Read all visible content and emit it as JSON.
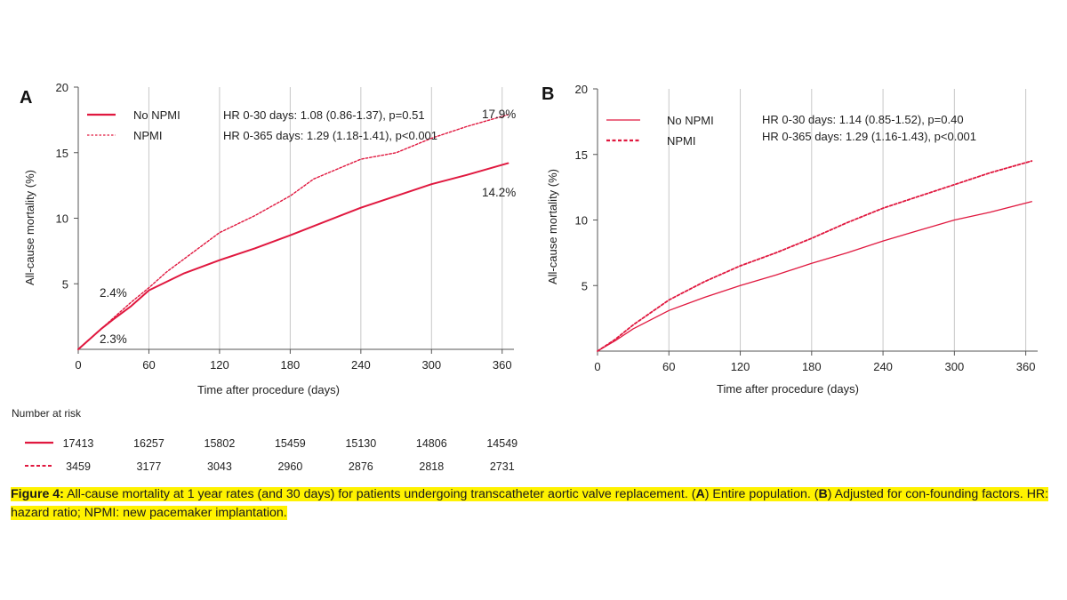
{
  "chart_data": [
    {
      "type": "line",
      "panel_label": "A",
      "xlabel": "Time after procedure (days)",
      "ylabel": "All-cause mortality (%)",
      "xlim": [
        0,
        370
      ],
      "ylim": [
        0,
        20
      ],
      "xticks": [
        0,
        60,
        120,
        180,
        240,
        300,
        360
      ],
      "yticks": [
        5,
        10,
        15,
        20
      ],
      "grid": "vertical",
      "legend_position": "top-left",
      "series": [
        {
          "name": "No NPMI",
          "style": "solid",
          "x": [
            0,
            10,
            20,
            30,
            45,
            60,
            90,
            120,
            150,
            180,
            200,
            240,
            270,
            300,
            330,
            365
          ],
          "values": [
            0,
            0.8,
            1.6,
            2.3,
            3.3,
            4.5,
            5.8,
            6.8,
            7.7,
            8.7,
            9.4,
            10.8,
            11.7,
            12.6,
            13.3,
            14.2
          ]
        },
        {
          "name": "NPMI",
          "style": "dashed",
          "x": [
            0,
            10,
            20,
            30,
            45,
            60,
            75,
            90,
            120,
            150,
            180,
            200,
            240,
            270,
            300,
            330,
            365
          ],
          "values": [
            0,
            0.8,
            1.6,
            2.4,
            3.6,
            4.7,
            5.9,
            6.9,
            8.9,
            10.2,
            11.7,
            13.0,
            14.5,
            15.0,
            16.1,
            17.0,
            17.9
          ]
        }
      ],
      "annotations": [
        {
          "text": "HR 0-30 days: 1.08 (0.86-1.37), p=0.51"
        },
        {
          "text": "HR 0-365 days: 1.29 (1.18-1.41), p<0.001"
        },
        {
          "text": "17.9%"
        },
        {
          "text": "14.2%"
        },
        {
          "text": "2.4%"
        },
        {
          "text": "2.3%"
        }
      ]
    },
    {
      "type": "line",
      "panel_label": "B",
      "xlabel": "Time after procedure (days)",
      "ylabel": "All-cause mortality (%)",
      "xlim": [
        0,
        370
      ],
      "ylim": [
        0,
        20
      ],
      "xticks": [
        0,
        60,
        120,
        180,
        240,
        300,
        360
      ],
      "yticks": [
        5,
        10,
        15,
        20
      ],
      "grid": "vertical",
      "legend_position": "top-left",
      "series": [
        {
          "name": "No NPMI",
          "style": "solid",
          "x": [
            0,
            15,
            30,
            60,
            90,
            120,
            150,
            180,
            210,
            240,
            270,
            300,
            330,
            365
          ],
          "values": [
            0,
            0.8,
            1.7,
            3.1,
            4.1,
            5.0,
            5.8,
            6.7,
            7.5,
            8.4,
            9.2,
            10.0,
            10.6,
            11.4
          ]
        },
        {
          "name": "NPMI",
          "style": "dashed",
          "x": [
            0,
            15,
            30,
            60,
            90,
            120,
            150,
            180,
            210,
            240,
            270,
            300,
            330,
            365
          ],
          "values": [
            0,
            0.9,
            2.0,
            3.9,
            5.3,
            6.5,
            7.5,
            8.6,
            9.8,
            10.9,
            11.8,
            12.7,
            13.6,
            14.5
          ]
        }
      ],
      "annotations": [
        {
          "text": "HR 0-30 days: 1.14 (0.85-1.52), p=0.40"
        },
        {
          "text": "HR 0-365 days: 1.29 (1.16-1.43), p<0.001"
        }
      ]
    }
  ],
  "risk_table": {
    "title": "Number at risk",
    "rows": [
      {
        "style": "solid",
        "values": [
          "17413",
          "16257",
          "15802",
          "15459",
          "15130",
          "14806",
          "14549"
        ]
      },
      {
        "style": "dashed",
        "values": [
          "3459",
          "3177",
          "3043",
          "2960",
          "2876",
          "2818",
          "2731"
        ]
      }
    ]
  },
  "caption": {
    "label": "Figure 4:",
    "text_1": " All-cause mortality at 1 year rates (and 30 days) for patients undergoing transcatheter aortic valve replacement. (",
    "a": "A",
    "text_2": ") Entire population. (",
    "b": "B",
    "text_3": ") Adjusted for con-founding factors. HR: hazard ratio; NPMI: new pacemaker implantation."
  },
  "colors": {
    "line": "#e0183f",
    "grid": "#c8c8c8",
    "axis": "#555555",
    "highlight": "#fff200"
  }
}
